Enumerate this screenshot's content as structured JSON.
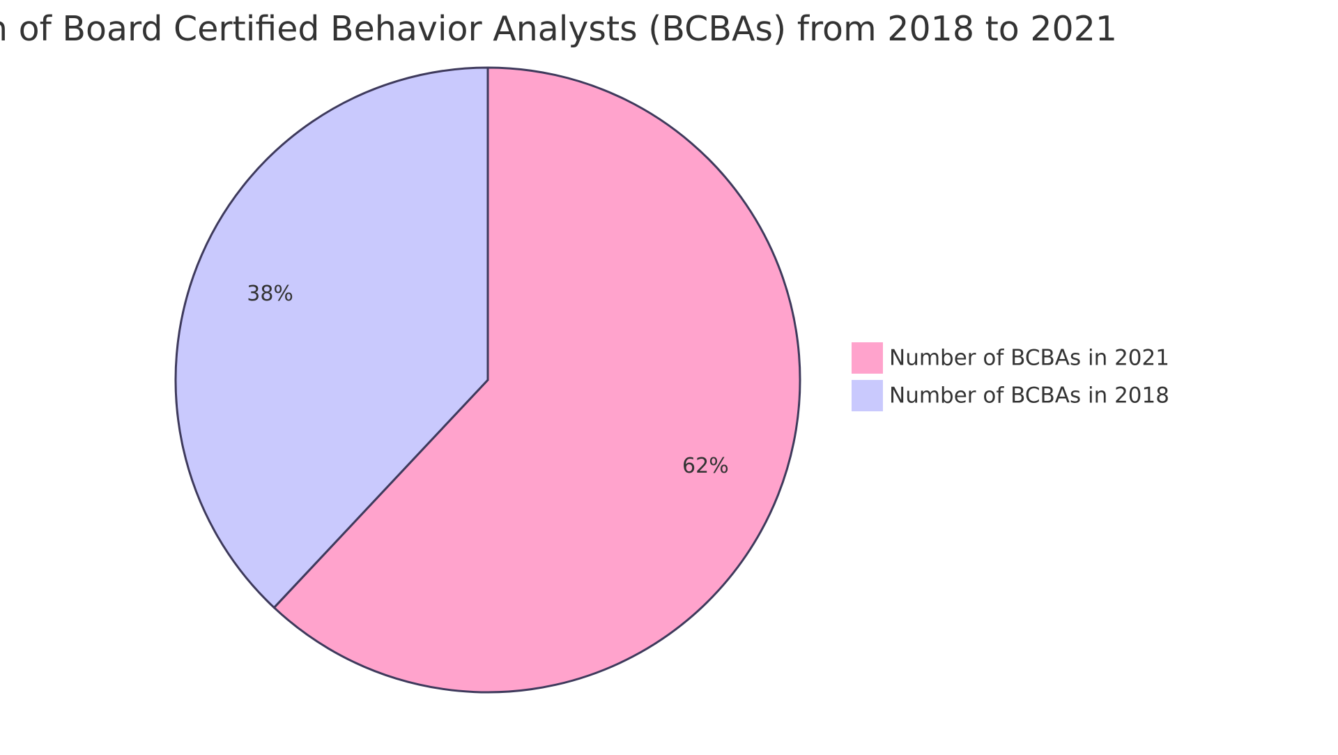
{
  "chart_data": {
    "type": "pie",
    "title": "n of Board Certified Behavior Analysts (BCBAs) from 2018 to 2021",
    "slices": [
      {
        "name": "Number of BCBAs in 2021",
        "value": 62,
        "label": "62%",
        "color": "#FFA3CC"
      },
      {
        "name": "Number of BCBAs in 2018",
        "value": 38,
        "label": "38%",
        "color": "#C9C9FD"
      }
    ],
    "legend_placement": "right",
    "stroke_color": "#3E3A5C"
  }
}
